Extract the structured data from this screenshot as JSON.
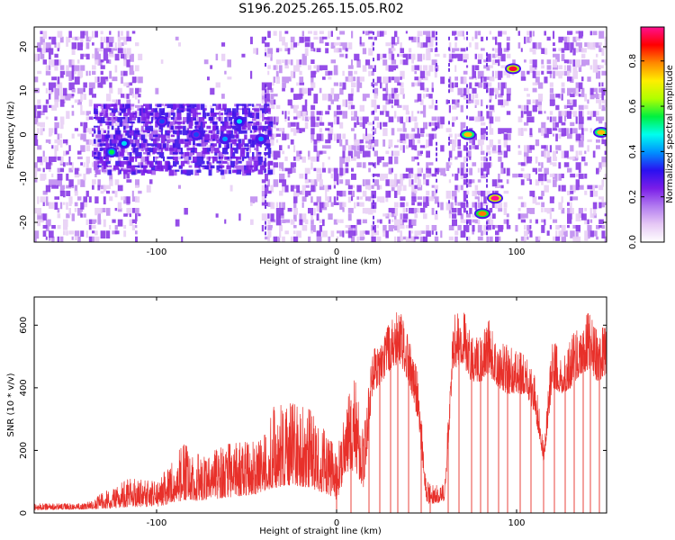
{
  "title": "S196.2025.265.15.05.R02",
  "chart_data": [
    {
      "type": "heatmap",
      "title": "S196.2025.265.15.05.R02",
      "xlabel": "Height of straight line (km)",
      "ylabel": "Frequency (Hz)",
      "xlim": [
        -168,
        150
      ],
      "ylim": [
        -24.5,
        24.5
      ],
      "xticks": [
        -100,
        0,
        100
      ],
      "yticks": [
        -20,
        -10,
        0,
        10,
        20
      ],
      "colorbar": {
        "label": "Normalized spectral amplitude",
        "range": [
          0.0,
          0.95
        ],
        "ticks": [
          "0.0",
          "0.2",
          "0.4",
          "0.6",
          "0.8"
        ],
        "colors": [
          "#ffffff",
          "#e6c8f5",
          "#b27bf0",
          "#7a1de8",
          "#2a10f0",
          "#0090ff",
          "#00ffee",
          "#00f040",
          "#b0ff00",
          "#ffee00",
          "#ff8800",
          "#ff0000",
          "#ff1090"
        ]
      },
      "bright_features": [
        {
          "x": -125,
          "y": -4,
          "value": 0.55
        },
        {
          "x": -118,
          "y": -2,
          "value": 0.45
        },
        {
          "x": -97,
          "y": 3,
          "value": 0.35
        },
        {
          "x": -78,
          "y": 0,
          "value": 0.35
        },
        {
          "x": -62,
          "y": -1,
          "value": 0.4
        },
        {
          "x": -54,
          "y": 3,
          "value": 0.45
        },
        {
          "x": -42,
          "y": -1,
          "value": 0.4
        },
        {
          "x": 73,
          "y": 0,
          "value": 0.75
        },
        {
          "x": 81,
          "y": -18,
          "value": 0.8
        },
        {
          "x": 88,
          "y": -14.5,
          "value": 0.95
        },
        {
          "x": 98,
          "y": 15,
          "value": 0.9
        },
        {
          "x": 147,
          "y": 0.5,
          "value": 0.75
        }
      ]
    },
    {
      "type": "line",
      "xlabel": "Height of straight line (km)",
      "ylabel": "SNR (10 * v/v)",
      "xlim": [
        -168,
        150
      ],
      "ylim": [
        0,
        690
      ],
      "xticks": [
        -100,
        0,
        100
      ],
      "yticks": [
        0,
        200,
        400,
        600
      ],
      "series": [
        {
          "name": "SNR",
          "color": "#e8302a",
          "envelope_x": [
            -168,
            -140,
            -125,
            -115,
            -100,
            -85,
            -75,
            -60,
            -45,
            -35,
            -25,
            -15,
            -5,
            0,
            5,
            10,
            15,
            20,
            25,
            30,
            35,
            40,
            45,
            50,
            55,
            60,
            65,
            70,
            75,
            80,
            85,
            90,
            95,
            100,
            105,
            110,
            115,
            120,
            125,
            130,
            135,
            140,
            145,
            150
          ],
          "envelope_upper": [
            30,
            30,
            80,
            110,
            100,
            220,
            180,
            220,
            230,
            340,
            350,
            330,
            250,
            200,
            340,
            440,
            250,
            520,
            540,
            620,
            650,
            560,
            450,
            100,
            90,
            90,
            650,
            660,
            560,
            560,
            620,
            540,
            540,
            520,
            500,
            450,
            220,
            560,
            500,
            560,
            600,
            640,
            580,
            600
          ],
          "envelope_lower": [
            10,
            12,
            15,
            20,
            20,
            40,
            40,
            50,
            60,
            80,
            90,
            80,
            60,
            40,
            120,
            140,
            80,
            380,
            420,
            460,
            480,
            420,
            300,
            30,
            30,
            40,
            460,
            480,
            420,
            420,
            440,
            400,
            380,
            380,
            380,
            320,
            160,
            400,
            380,
            400,
            440,
            460,
            420,
            440
          ],
          "dropouts_x": [
            0,
            8,
            18,
            24,
            30,
            34,
            40,
            47,
            52,
            62,
            68,
            75,
            80,
            84,
            90,
            95,
            102,
            108,
            115,
            121,
            127,
            132,
            137,
            141,
            146
          ]
        }
      ]
    }
  ]
}
